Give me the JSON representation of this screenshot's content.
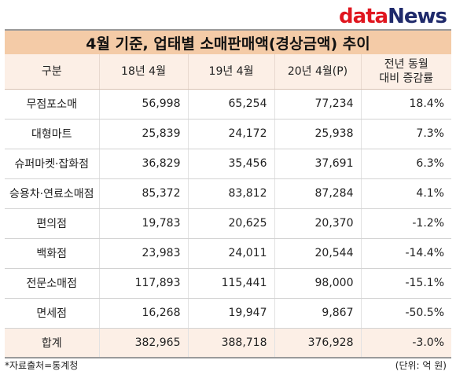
{
  "logo": {
    "data_text": "data",
    "news_text": "News"
  },
  "title": "4월 기준, 업태별 소매판매액(경상금액) 추이",
  "table": {
    "headers": [
      "구분",
      "18년 4월",
      "19년 4월",
      "20년 4월(P)",
      "전년 동월\n대비 증감률"
    ],
    "rows": [
      [
        "무점포소매",
        "56,998",
        "65,254",
        "77,234",
        "18.4%"
      ],
      [
        "대형마트",
        "25,839",
        "24,172",
        "25,938",
        "7.3%"
      ],
      [
        "슈퍼마켓·잡화점",
        "36,829",
        "35,456",
        "37,691",
        "6.3%"
      ],
      [
        "승용차·연료소매점",
        "85,372",
        "83,812",
        "87,284",
        "4.1%"
      ],
      [
        "편의점",
        "19,783",
        "20,625",
        "20,370",
        "-1.2%"
      ],
      [
        "백화점",
        "23,983",
        "24,011",
        "20,544",
        "-14.4%"
      ],
      [
        "전문소매점",
        "117,893",
        "115,441",
        "98,000",
        "-15.1%"
      ],
      [
        "면세점",
        "16,268",
        "19,947",
        "9,867",
        "-50.5%"
      ]
    ],
    "total": [
      "합계",
      "382,965",
      "388,718",
      "376,928",
      "-3.0%"
    ]
  },
  "footer": {
    "source": "*자료출처=통계청",
    "unit": "(단위: 억 원)"
  },
  "colors": {
    "header_bg": "#f4cba7",
    "subheader_bg": "#fcefe6",
    "logo_red": "#e0161f",
    "logo_navy": "#1f2a6b"
  }
}
